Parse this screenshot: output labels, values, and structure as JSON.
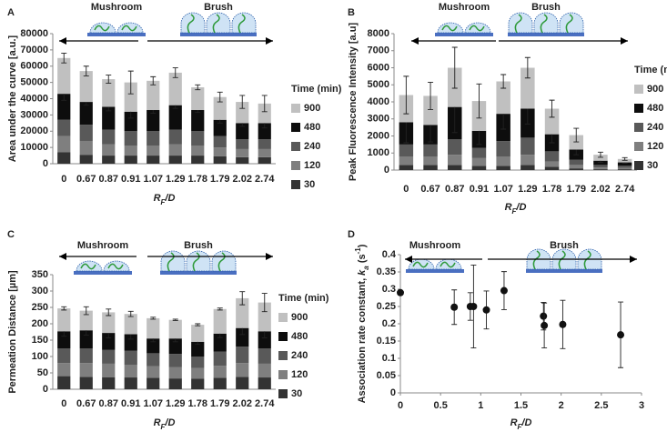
{
  "chart_data": [
    {
      "type": "stacked_bar",
      "panel_label": "A",
      "header_left": "Mushroom",
      "header_right": "Brush",
      "y_label": [
        {
          "text": "Area under the curve [a.u.]",
          "style": "normal"
        }
      ],
      "x_label": [
        {
          "text": "R",
          "style": "italic"
        },
        {
          "text": "F",
          "style": "sub"
        },
        {
          "text": "/D",
          "style": "italic"
        }
      ],
      "legend_title": "Time (min)",
      "categories": [
        "0",
        "0.67",
        "0.87",
        "0.91",
        "1.07",
        "1.29",
        "1.78",
        "1.79",
        "2.02",
        "2.74"
      ],
      "ylim": [
        0,
        80000
      ],
      "yticks": [
        0,
        10000,
        20000,
        30000,
        40000,
        50000,
        60000,
        70000,
        80000
      ],
      "series": [
        {
          "name": "30",
          "color": "#333333",
          "values": [
            7000,
            5500,
            5000,
            5000,
            5000,
            5000,
            5000,
            4500,
            4000,
            4000
          ]
        },
        {
          "name": "120",
          "color": "#7f7f7f",
          "values": [
            10000,
            8500,
            7000,
            6000,
            6000,
            7000,
            6000,
            5500,
            5000,
            5000
          ]
        },
        {
          "name": "240",
          "color": "#595959",
          "values": [
            10000,
            10000,
            9000,
            9000,
            9000,
            9000,
            9000,
            7000,
            6000,
            6000
          ]
        },
        {
          "name": "480",
          "color": "#0d0d0d",
          "values": [
            16000,
            14000,
            14000,
            12000,
            13000,
            15000,
            13000,
            10000,
            10000,
            10000
          ],
          "errors": [
            4000,
            2000,
            2500,
            4000,
            2000,
            2000,
            1500,
            2000,
            2000,
            3000
          ]
        },
        {
          "name": "900",
          "color": "#c0c0c0",
          "values": [
            22000,
            19000,
            17000,
            18000,
            18000,
            20000,
            14000,
            14000,
            13000,
            12000
          ],
          "errors": [
            3000,
            3000,
            2500,
            7000,
            2500,
            3000,
            1500,
            3000,
            4000,
            5000
          ]
        }
      ]
    },
    {
      "type": "stacked_bar",
      "panel_label": "B",
      "header_left": "Mushroom",
      "header_right": "Brush",
      "y_label": [
        {
          "text": "Peak Fluorescence Intensity [a.u]",
          "style": "normal"
        }
      ],
      "x_label": [
        {
          "text": "R",
          "style": "italic"
        },
        {
          "text": "F",
          "style": "sub"
        },
        {
          "text": "/D",
          "style": "italic"
        }
      ],
      "legend_title": "Time (min)",
      "categories": [
        "0",
        "0.67",
        "0.87",
        "0.91",
        "1.07",
        "1.29",
        "1.78",
        "1.79",
        "2.02",
        "2.74"
      ],
      "ylim": [
        0,
        8000
      ],
      "yticks": [
        0,
        1000,
        2000,
        3000,
        4000,
        5000,
        6000,
        7000,
        8000
      ],
      "series": [
        {
          "name": "30",
          "color": "#333333",
          "values": [
            300,
            300,
            300,
            250,
            250,
            300,
            200,
            100,
            50,
            50
          ]
        },
        {
          "name": "120",
          "color": "#7f7f7f",
          "values": [
            500,
            500,
            600,
            450,
            550,
            600,
            300,
            200,
            100,
            70
          ]
        },
        {
          "name": "240",
          "color": "#595959",
          "values": [
            700,
            700,
            900,
            600,
            900,
            1000,
            600,
            300,
            150,
            130
          ]
        },
        {
          "name": "480",
          "color": "#0d0d0d",
          "values": [
            1300,
            1150,
            1900,
            1000,
            1600,
            1700,
            1000,
            600,
            250,
            200
          ],
          "errors": [
            1200,
            1000,
            1500,
            800,
            900,
            900,
            500,
            300,
            100,
            50
          ]
        },
        {
          "name": "900",
          "color": "#c0c0c0",
          "values": [
            1600,
            1700,
            2300,
            1750,
            1900,
            2400,
            1500,
            850,
            350,
            200
          ],
          "errors": [
            1100,
            800,
            1200,
            1000,
            400,
            600,
            500,
            400,
            150,
            80
          ]
        }
      ]
    },
    {
      "type": "stacked_bar",
      "panel_label": "C",
      "header_left": "Mushroom",
      "header_right": "Brush",
      "y_label": [
        {
          "text": "Permeation Distance [µm]",
          "style": "normal"
        }
      ],
      "x_label": [
        {
          "text": "R",
          "style": "italic"
        },
        {
          "text": "F",
          "style": "sub"
        },
        {
          "text": "/D",
          "style": "italic"
        }
      ],
      "legend_title": "Time (min)",
      "categories": [
        "0",
        "0.67",
        "0.87",
        "0.91",
        "1.07",
        "1.29",
        "1.78",
        "1.79",
        "2.02",
        "2.74"
      ],
      "ylim": [
        0,
        350
      ],
      "yticks": [
        0,
        50,
        100,
        150,
        200,
        250,
        300,
        350
      ],
      "series": [
        {
          "name": "30",
          "color": "#333333",
          "values": [
            40,
            38,
            37,
            36,
            35,
            33,
            32,
            35,
            38,
            36
          ]
        },
        {
          "name": "120",
          "color": "#7f7f7f",
          "values": [
            40,
            42,
            41,
            39,
            35,
            35,
            33,
            37,
            42,
            42
          ]
        },
        {
          "name": "240",
          "color": "#595959",
          "values": [
            45,
            45,
            42,
            43,
            40,
            40,
            35,
            43,
            50,
            47
          ]
        },
        {
          "name": "480",
          "color": "#0d0d0d",
          "values": [
            52,
            55,
            52,
            50,
            45,
            47,
            45,
            55,
            57,
            52
          ],
          "errors": [
            15,
            15,
            15,
            15,
            10,
            10,
            8,
            12,
            20,
            20
          ]
        },
        {
          "name": "900",
          "color": "#c0c0c0",
          "values": [
            70,
            60,
            63,
            62,
            62,
            57,
            52,
            75,
            91,
            88
          ],
          "errors": [
            5,
            12,
            10,
            8,
            3,
            2,
            3,
            3,
            20,
            28
          ]
        }
      ]
    },
    {
      "type": "scatter",
      "panel_label": "D",
      "header_left": "Mushroom",
      "header_right": "Brush",
      "y_label": [
        {
          "text": "Association rate constant, ",
          "style": "normal"
        },
        {
          "text": "k",
          "style": "italic"
        },
        {
          "text": "a",
          "style": "sub"
        },
        {
          "text": " (s",
          "style": "normal"
        },
        {
          "text": "-1",
          "style": "sup"
        },
        {
          "text": ")",
          "style": "normal"
        }
      ],
      "x_label": [
        {
          "text": "R",
          "style": "italic"
        },
        {
          "text": "F",
          "style": "sub"
        },
        {
          "text": "/D",
          "style": "italic"
        }
      ],
      "xlim": [
        0,
        3
      ],
      "xticks": [
        0,
        0.5,
        1,
        1.5,
        2,
        2.5,
        3
      ],
      "ylim": [
        0,
        0.4
      ],
      "yticks": [
        0,
        0.05,
        0.1,
        0.15,
        0.2,
        0.25,
        0.3,
        0.35,
        0.4
      ],
      "color": "#111111",
      "x": [
        0,
        0.67,
        0.87,
        0.91,
        1.07,
        1.29,
        1.78,
        1.79,
        2.02,
        2.74
      ],
      "values": [
        0.29,
        0.248,
        0.25,
        0.25,
        0.24,
        0.296,
        0.222,
        0.195,
        0.198,
        0.168
      ],
      "errors": [
        0,
        0.05,
        0.04,
        0.12,
        0.055,
        0.055,
        0.04,
        0.065,
        0.07,
        0.095
      ]
    }
  ]
}
